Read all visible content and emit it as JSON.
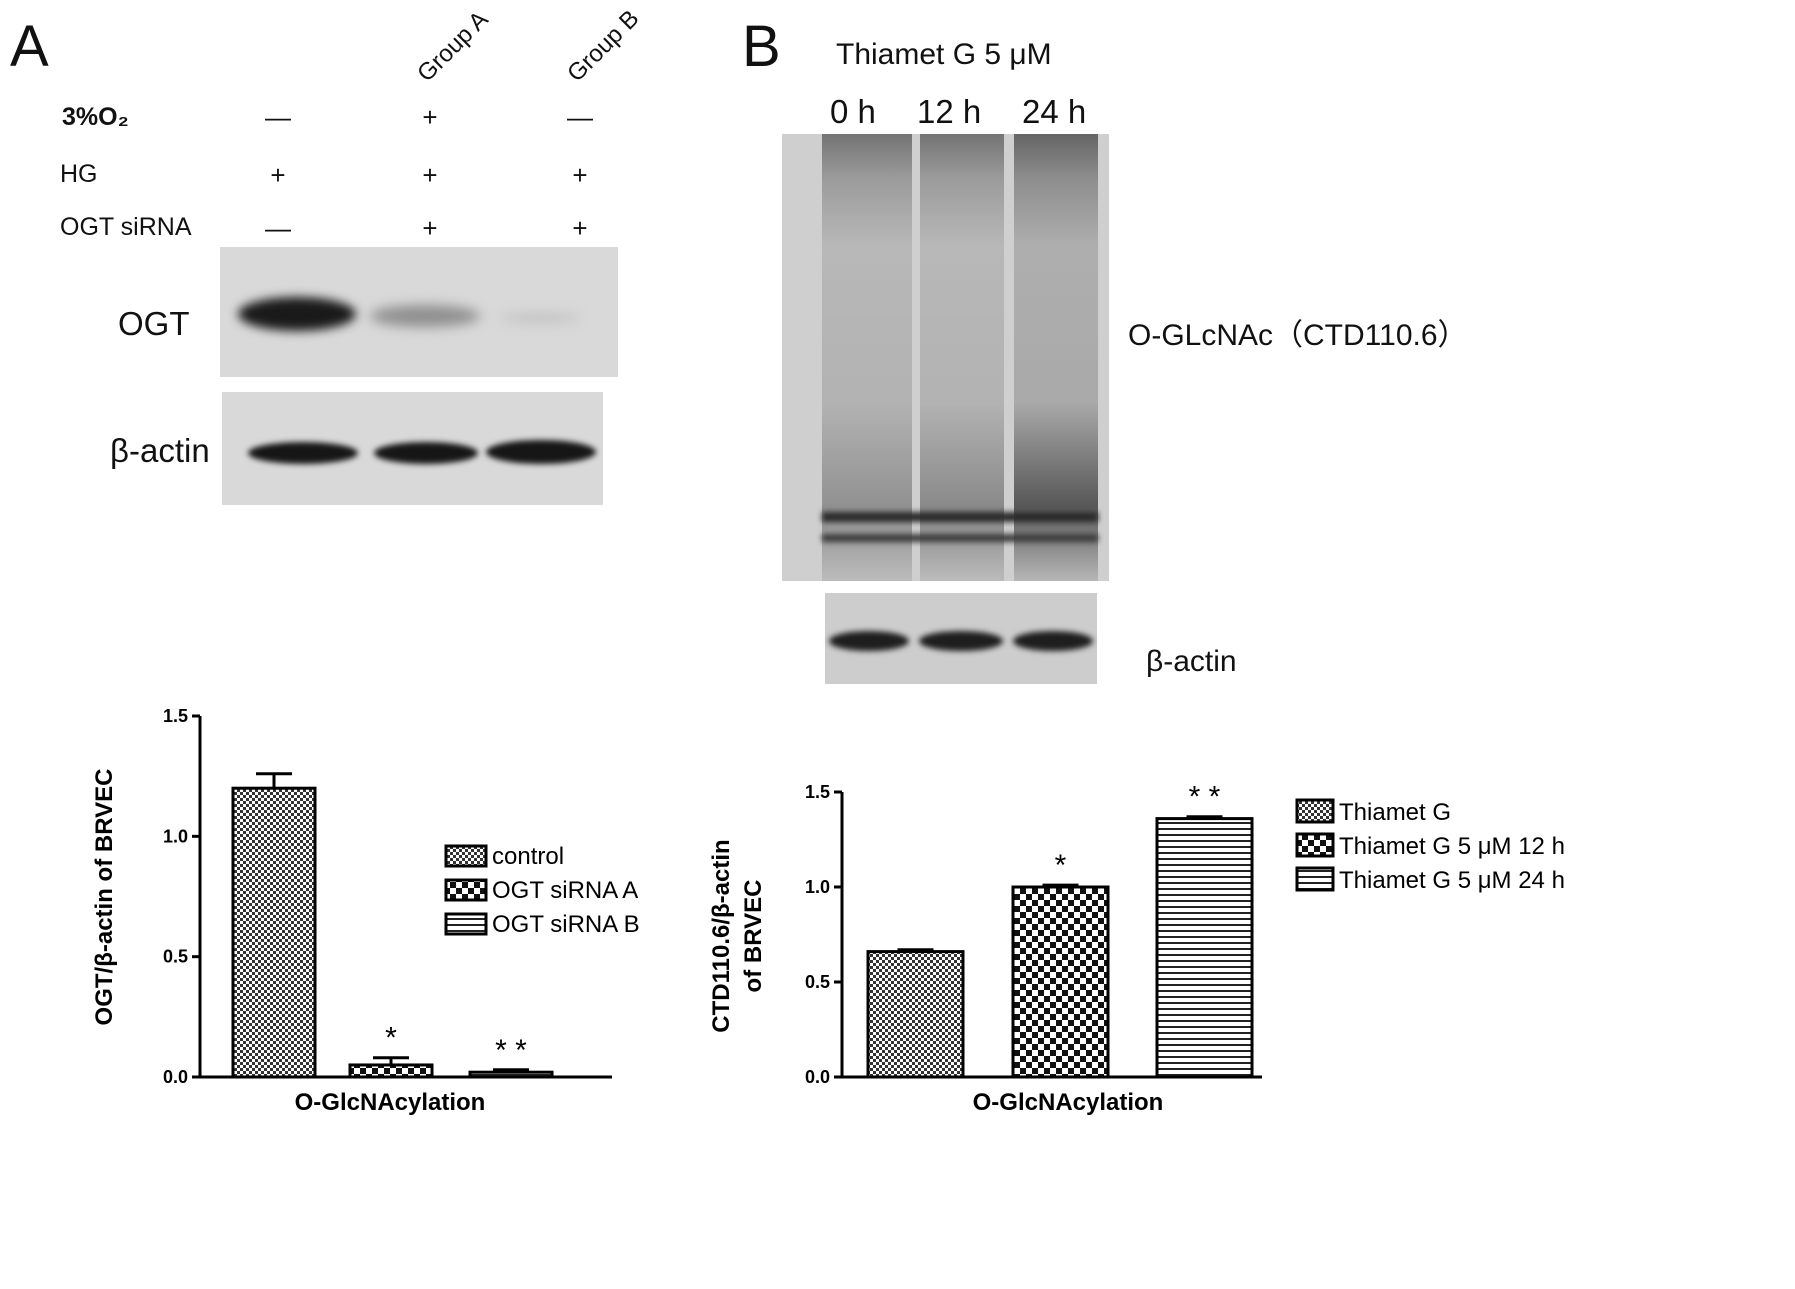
{
  "panel_a": {
    "letter": "A",
    "groups": [
      "Group A",
      "Group B"
    ],
    "conditions": [
      {
        "label": "3%O₂",
        "signs": [
          "—",
          "+",
          "—"
        ]
      },
      {
        "label": "HG",
        "signs": [
          "+",
          "+",
          "+"
        ]
      },
      {
        "label": "OGT siRNA",
        "signs": [
          "—",
          "+",
          "+"
        ]
      }
    ],
    "blot_labels": [
      "OGT",
      "β-actin"
    ]
  },
  "panel_b": {
    "letter": "B",
    "treatment": "Thiamet G  5 μM",
    "timepoints": [
      "0 h",
      "12 h",
      "24 h"
    ],
    "blot_labels": [
      "O-GLcNAc（CTD110.6）",
      "β-actin"
    ]
  },
  "chart_data": [
    {
      "type": "bar",
      "categories": [
        "control",
        "OGT siRNA A",
        "OGT siRNA B"
      ],
      "values": [
        1.2,
        0.05,
        0.02
      ],
      "errors": [
        0.06,
        0.03,
        0.01
      ],
      "significance": [
        "",
        "*",
        "* *"
      ],
      "patterns": [
        "check-fine",
        "check-coarse",
        "hstripe"
      ],
      "legend": [
        "control",
        "OGT siRNA A",
        "OGT siRNA B"
      ],
      "xlabel": "O-GlcNAcylation",
      "ylabel": "OGT/β-actin of BRVEC",
      "ylim": [
        0,
        1.5
      ],
      "yticks": [
        "0.0",
        "0.5",
        "1.0",
        "1.5"
      ],
      "legend_position": "right"
    },
    {
      "type": "bar",
      "categories": [
        "Thiamet G",
        "Thiamet G 5 μM 12 h",
        "Thiamet G 5 μM 24 h"
      ],
      "values": [
        0.66,
        1.0,
        1.36
      ],
      "errors": [
        0.01,
        0.01,
        0.01
      ],
      "significance": [
        "",
        "*",
        "* *"
      ],
      "patterns": [
        "check-fine",
        "check-coarse",
        "hstripe"
      ],
      "legend": [
        "Thiamet G",
        "Thiamet G 5 μM 12 h",
        "Thiamet G 5 μM 24 h"
      ],
      "xlabel": "O-GlcNAcylation",
      "ylabel": [
        "CTD110.6/β-actin",
        "of BRVEC"
      ],
      "ylim": [
        0,
        1.5
      ],
      "yticks": [
        "0.0",
        "0.5",
        "1.0",
        "1.5"
      ],
      "legend_position": "top-right"
    }
  ]
}
